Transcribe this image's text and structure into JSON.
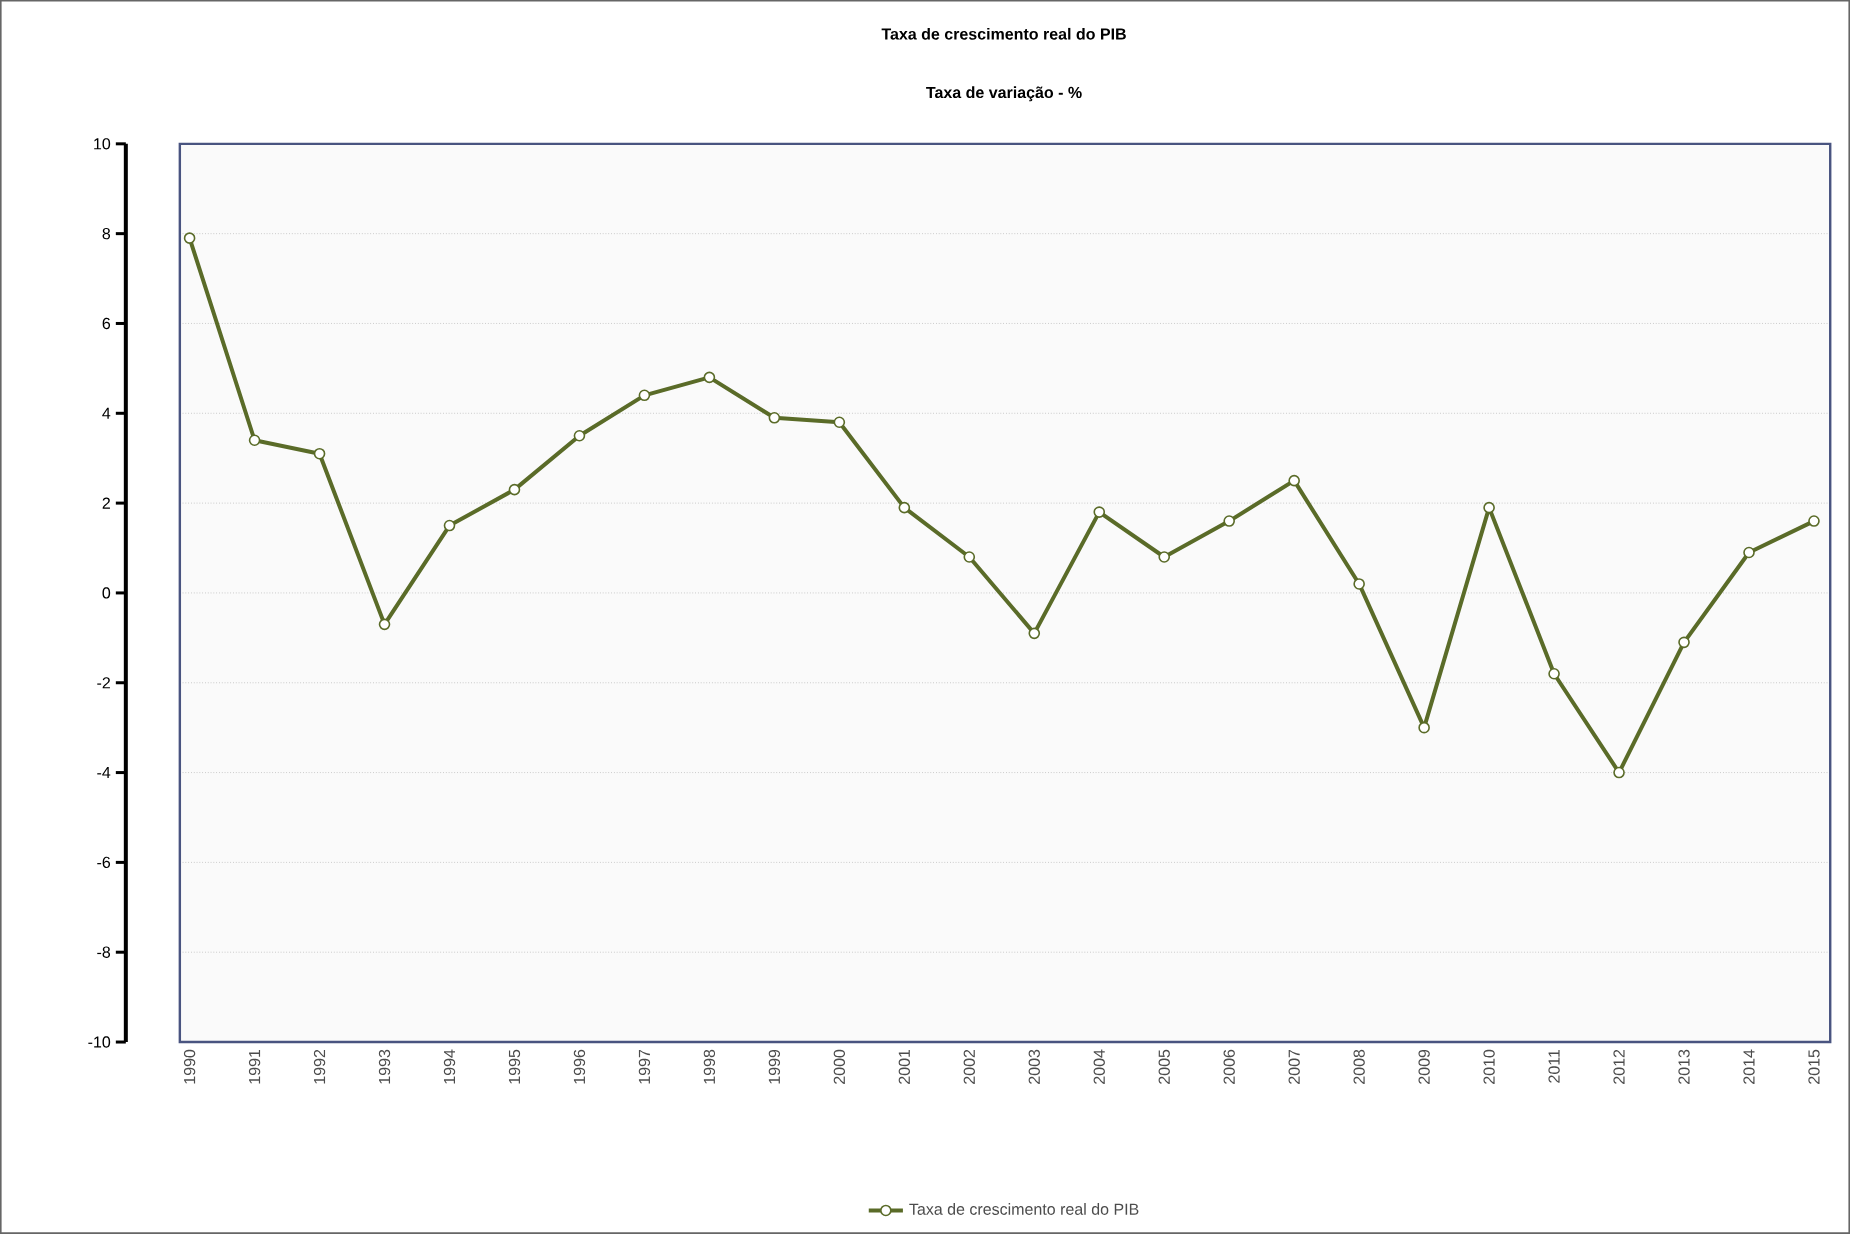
{
  "chart_data": {
    "type": "line",
    "title": "Taxa de crescimento real do PIB",
    "subtitle": "Taxa de variação - %",
    "categories": [
      "1990",
      "1991",
      "1992",
      "1993",
      "1994",
      "1995",
      "1996",
      "1997",
      "1998",
      "1999",
      "2000",
      "2001",
      "2002",
      "2003",
      "2004",
      "2005",
      "2006",
      "2007",
      "2008",
      "2009",
      "2010",
      "2011",
      "2012",
      "2013",
      "2014",
      "2015"
    ],
    "series": [
      {
        "name": "Taxa de crescimento real do PIB",
        "color": "#5a6b28",
        "values": [
          7.9,
          3.4,
          3.1,
          -0.7,
          1.5,
          2.3,
          3.5,
          4.4,
          4.8,
          3.9,
          3.8,
          1.9,
          0.8,
          -0.9,
          1.8,
          0.8,
          1.6,
          2.5,
          0.2,
          -3.0,
          1.9,
          -1.8,
          -4.0,
          -1.1,
          0.9,
          1.6
        ]
      }
    ],
    "ylim": [
      -10,
      10
    ],
    "yticks": [
      -10,
      -8,
      -6,
      -4,
      -2,
      0,
      2,
      4,
      6,
      8,
      10
    ],
    "grid": "y",
    "legend": "bottom",
    "marker": "circle",
    "line_style": "solid"
  }
}
